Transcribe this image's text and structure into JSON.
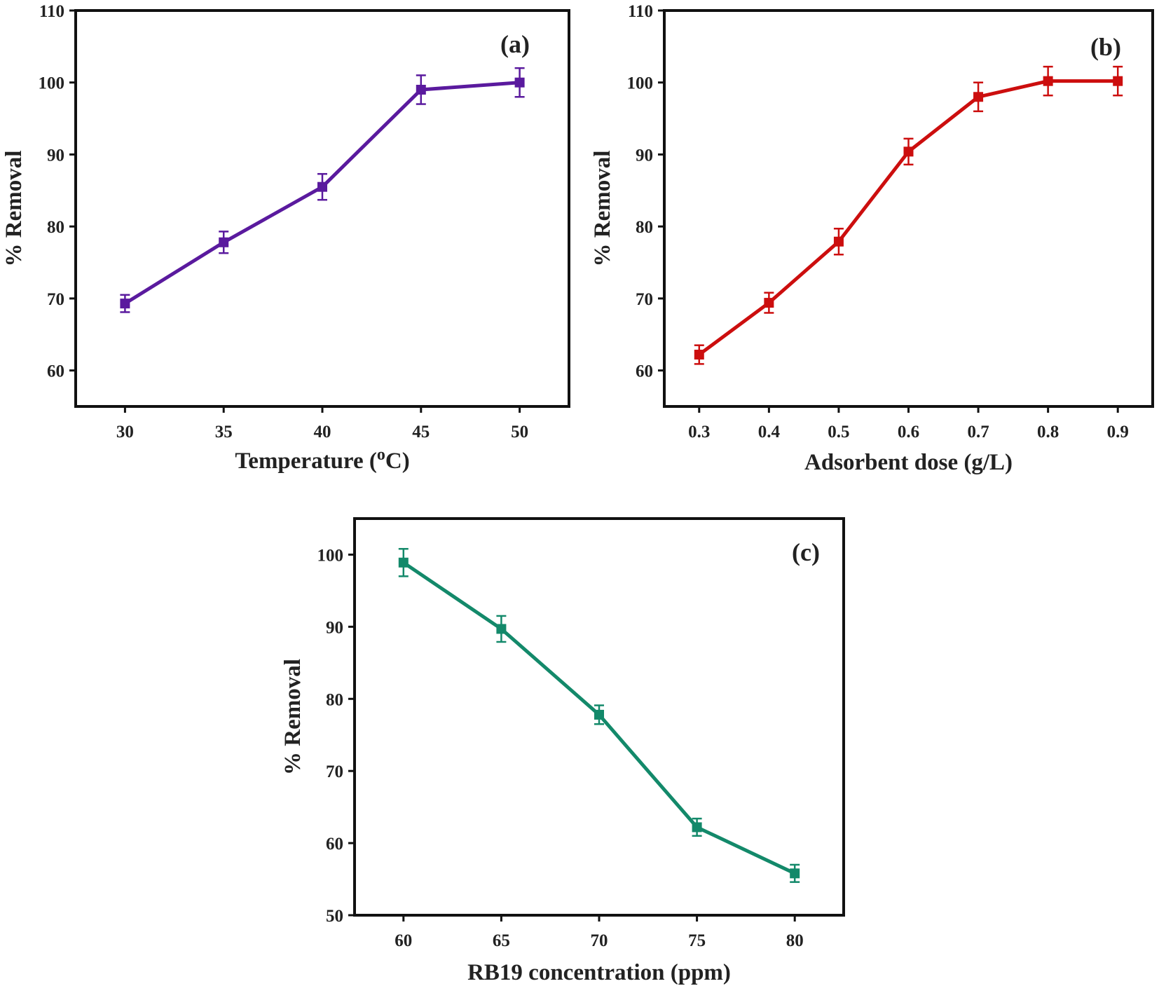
{
  "chart_data": [
    {
      "type": "line",
      "panel_label": "(a)",
      "xlabel": "Temperature (",
      "xlabel_sup": "o",
      "xlabel_tail": "C)",
      "ylabel": "% Removal",
      "x": [
        30,
        35,
        40,
        45,
        50
      ],
      "xticks": [
        "30",
        "35",
        "40",
        "45",
        "50"
      ],
      "xlim": [
        27.5,
        52.5
      ],
      "ylim": [
        55,
        110
      ],
      "yticks": [
        "60",
        "70",
        "80",
        "90",
        "100",
        "110"
      ],
      "color": "#5a1a9e",
      "series": [
        {
          "values": [
            69.3,
            77.8,
            85.5,
            99.0,
            100.0
          ],
          "errors": [
            1.2,
            1.5,
            1.8,
            2.0,
            2.0
          ]
        }
      ],
      "legend": "none",
      "grid": false
    },
    {
      "type": "line",
      "panel_label": "(b)",
      "xlabel": "Adsorbent dose (g/L)",
      "ylabel": "% Removal",
      "x": [
        0.3,
        0.4,
        0.5,
        0.6,
        0.7,
        0.8,
        0.9
      ],
      "xticks": [
        "0.3",
        "0.4",
        "0.5",
        "0.6",
        "0.7",
        "0.8",
        "0.9"
      ],
      "xlim": [
        0.25,
        0.95
      ],
      "ylim": [
        55,
        110
      ],
      "yticks": [
        "60",
        "70",
        "80",
        "90",
        "100",
        "110"
      ],
      "color": "#cc0e0e",
      "series": [
        {
          "values": [
            62.2,
            69.4,
            77.9,
            90.4,
            98.0,
            100.2,
            100.2
          ],
          "errors": [
            1.3,
            1.4,
            1.8,
            1.8,
            2.0,
            2.0,
            2.0
          ]
        }
      ],
      "legend": "none",
      "grid": false
    },
    {
      "type": "line",
      "panel_label": "(c)",
      "xlabel": "RB19 concentration (ppm)",
      "ylabel": "% Removal",
      "x": [
        60,
        65,
        70,
        75,
        80
      ],
      "xticks": [
        "60",
        "65",
        "70",
        "75",
        "80"
      ],
      "xlim": [
        57.5,
        82.5
      ],
      "ylim": [
        50,
        105
      ],
      "yticks": [
        "50",
        "60",
        "70",
        "80",
        "90",
        "100"
      ],
      "color": "#13896a",
      "series": [
        {
          "values": [
            98.9,
            89.7,
            77.8,
            62.2,
            55.8
          ],
          "errors": [
            1.9,
            1.8,
            1.3,
            1.2,
            1.2
          ]
        }
      ],
      "legend": "none",
      "grid": false
    }
  ]
}
